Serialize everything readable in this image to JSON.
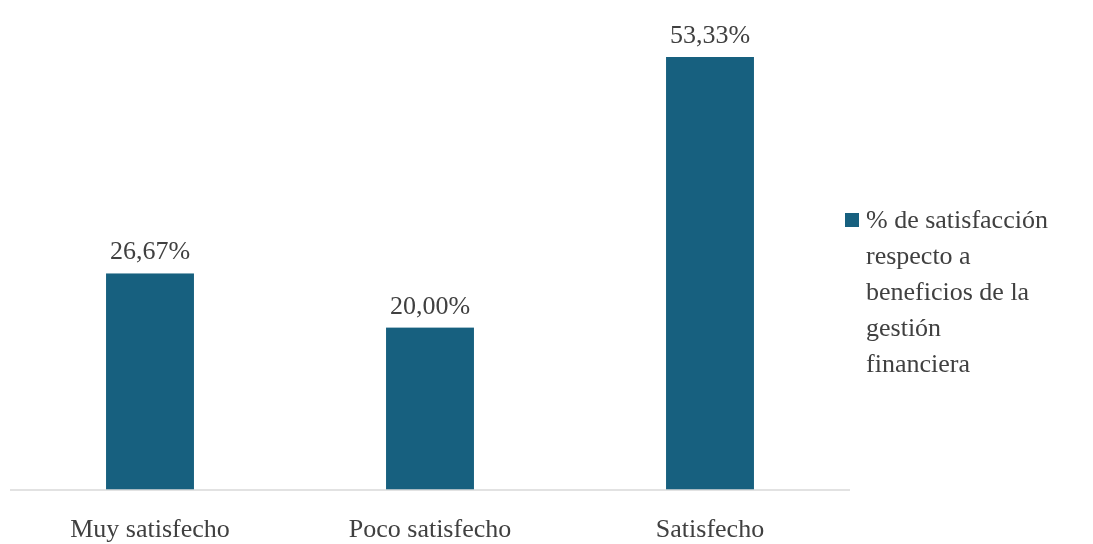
{
  "chart_data": {
    "type": "bar",
    "categories": [
      "Muy satisfecho",
      "Poco satisfecho",
      "Satisfecho"
    ],
    "series": [
      {
        "name": "% de satisfacción respecto a beneficios de la gestión financiera",
        "color": "#17607f",
        "values": [
          26.67,
          20.0,
          53.33
        ],
        "value_labels": [
          "26,67%",
          "20,00%",
          "53,33%"
        ]
      }
    ],
    "legend": "right",
    "grid": false
  }
}
